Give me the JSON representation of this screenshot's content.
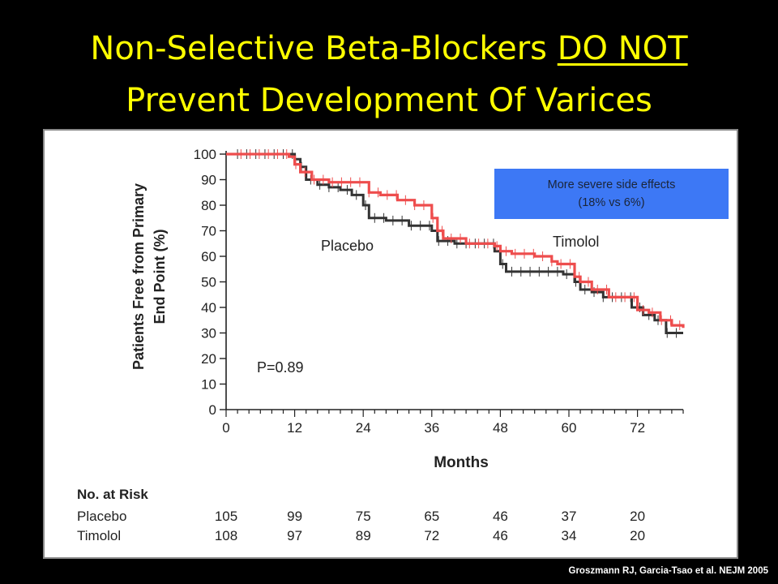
{
  "slide": {
    "title_line1_plain": "Non-Selective Beta-Blockers ",
    "title_line1_underlined": "DO NOT",
    "title_line2": "Prevent Development Of Varices",
    "callout_line1": "More severe side effects",
    "callout_line2": "(18% vs 6%)",
    "credit": "Groszmann RJ, Garcia-Tsao et al. NEJM 2005",
    "title_color": "#ffff00",
    "background": "#000000",
    "callout_color": "#3d78f5"
  },
  "chart_data": {
    "type": "line",
    "title": "",
    "xlabel": "Months",
    "ylabel_line1": "Patients Free from Primary",
    "ylabel_line2": "End Point (%)",
    "xlim": [
      0,
      80
    ],
    "ylim": [
      0,
      100
    ],
    "x_ticks": [
      0,
      12,
      24,
      36,
      48,
      60,
      72
    ],
    "y_ticks": [
      0,
      10,
      20,
      30,
      40,
      50,
      60,
      70,
      80,
      90,
      100
    ],
    "annotation": "P=0.89",
    "grid": false,
    "series": [
      {
        "name": "Placebo",
        "color": "#333333",
        "x": [
          0,
          11,
          12,
          13,
          14,
          16,
          18,
          20,
          22,
          24,
          25,
          28,
          32,
          36,
          37,
          40,
          44,
          47,
          48,
          49,
          52,
          55,
          57,
          59,
          61,
          62,
          64,
          66,
          70,
          71,
          73,
          75,
          77,
          80
        ],
        "y": [
          100,
          100,
          98,
          95,
          90,
          88,
          87,
          86,
          84,
          80,
          75,
          74,
          72,
          70,
          66,
          65,
          65,
          62,
          57,
          54,
          54,
          54,
          54,
          53,
          50,
          47,
          46,
          44,
          44,
          40,
          37,
          35,
          30,
          30
        ]
      },
      {
        "name": "Timolol",
        "color": "#ee4d4d",
        "x": [
          0,
          10,
          11,
          12,
          13,
          15,
          18,
          22,
          25,
          27,
          30,
          33,
          36,
          37,
          38,
          42,
          47,
          48,
          50,
          54,
          57,
          58,
          61,
          62,
          64,
          67,
          70,
          72,
          74,
          76,
          78,
          80
        ],
        "y": [
          100,
          100,
          99,
          96,
          93,
          90,
          89,
          89,
          85,
          84,
          82,
          80,
          75,
          70,
          67,
          65,
          64,
          62,
          61,
          60,
          58,
          57,
          52,
          50,
          47,
          44,
          44,
          39,
          38,
          35,
          33,
          32
        ]
      }
    ],
    "risk_table": {
      "header": "No. at Risk",
      "months": [
        0,
        12,
        24,
        36,
        48,
        60,
        72
      ],
      "rows": [
        {
          "label": "Placebo",
          "values": [
            "105",
            "99",
            "75",
            "65",
            "46",
            "37",
            "20"
          ]
        },
        {
          "label": "Timolol",
          "values": [
            "108",
            "97",
            "89",
            "72",
            "46",
            "34",
            "20"
          ]
        }
      ]
    }
  }
}
